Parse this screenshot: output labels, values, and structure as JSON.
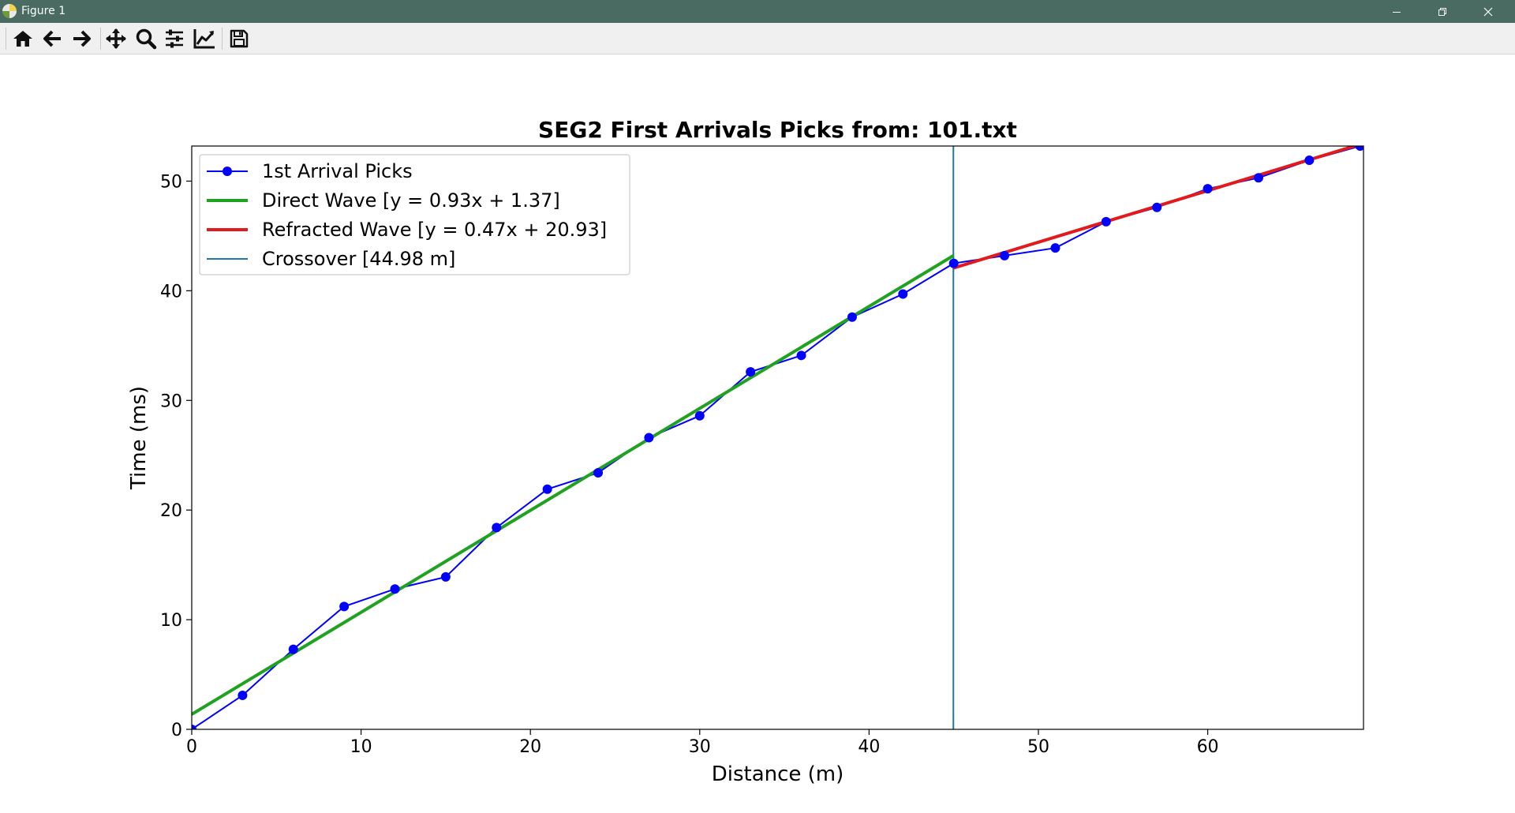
{
  "window": {
    "title": "Figure 1",
    "buttons": {
      "minimize": "minimize-icon",
      "restore": "restore-icon",
      "close": "close-icon"
    }
  },
  "toolbar": {
    "tools": [
      "home-icon",
      "back-arrow-icon",
      "forward-arrow-icon",
      "pan-icon",
      "zoom-icon",
      "configure-subplots-icon",
      "edit-axis-icon",
      "save-icon"
    ]
  },
  "colors": {
    "titlebar": "#4a6b62",
    "picks": "#0000ff",
    "direct": "#1fa21f",
    "refracted": "#e31a1c",
    "crossover": "#1f77b4"
  },
  "chart_data": {
    "type": "line",
    "title": "SEG2 First Arrivals Picks from: 101.txt",
    "xlabel": "Distance (m)",
    "ylabel": "Time (ms)",
    "xlim": [
      0,
      69.2
    ],
    "ylim": [
      0,
      53.2
    ],
    "xticks": [
      0,
      10,
      20,
      30,
      40,
      50,
      60
    ],
    "yticks": [
      0,
      10,
      20,
      30,
      40,
      50
    ],
    "grid": false,
    "legend_position": "top-left",
    "series": [
      {
        "name": "1st Arrival Picks",
        "kind": "line-marker",
        "color": "#0000ff",
        "x": [
          0,
          3,
          6,
          9,
          12,
          15,
          18,
          21,
          24,
          27,
          30,
          33,
          36,
          39,
          42,
          45,
          48,
          51,
          54,
          57,
          60,
          63,
          66,
          69
        ],
        "y": [
          0,
          3.1,
          7.3,
          11.2,
          12.8,
          13.9,
          18.4,
          21.9,
          23.4,
          26.6,
          28.6,
          32.6,
          34.1,
          37.6,
          39.7,
          42.5,
          43.2,
          43.9,
          46.3,
          47.6,
          49.3,
          50.3,
          51.9,
          53.2
        ]
      },
      {
        "name": "Direct Wave [y = 0.93x + 1.37]",
        "kind": "fit-line",
        "color": "#1fa21f",
        "x": [
          0,
          45
        ],
        "y": [
          1.37,
          43.22
        ]
      },
      {
        "name": "Refracted Wave [y = 0.47x + 20.93]",
        "kind": "fit-line",
        "color": "#e31a1c",
        "x": [
          44.98,
          69.2
        ],
        "y": [
          42.07,
          53.45
        ]
      },
      {
        "name": "Crossover [44.98 m]",
        "kind": "vline",
        "color": "#1f77b4",
        "x": 44.98
      }
    ]
  }
}
